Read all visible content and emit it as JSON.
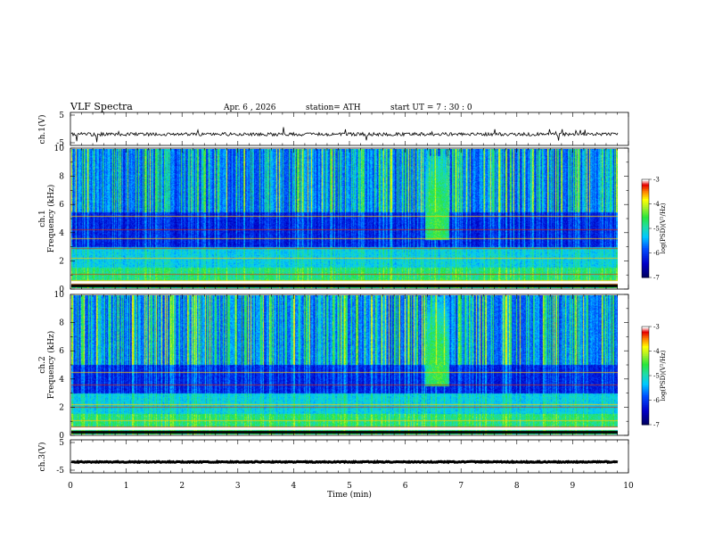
{
  "header": {
    "title": "VLF  Spectra",
    "date": "Apr. 6  , 2026",
    "station": "station= ATH",
    "start_ut": "start  UT  =   7  : 30 : 0"
  },
  "chart_data": [
    {
      "type": "line",
      "name": "ch1-waveform",
      "ylabel": "ch.1(V)",
      "ylim": [
        -5,
        5
      ],
      "yticks": [
        "5",
        "-5"
      ],
      "xlim": [
        0,
        10
      ],
      "baseline": -1.6,
      "noise_amplitude": 0.5,
      "spike_amplitude": 2.5
    },
    {
      "type": "heatmap",
      "name": "ch1-spectrogram",
      "ylabel": "ch.1\nFrequency  (kHz)",
      "ylabel_line1": "ch.1",
      "ylabel_line2": "Frequency  (kHz)",
      "ylim": [
        0,
        10
      ],
      "yticks": [
        "0",
        "2",
        "4",
        "6",
        "8",
        "10"
      ],
      "xlim": [
        0,
        9.8
      ],
      "colorbar": {
        "label": "log(PSD)(V²/Hz)",
        "range": [
          -7,
          -3
        ],
        "ticks": [
          "-3",
          "-4",
          "-5",
          "-6",
          "-7"
        ]
      },
      "bands_khz": [
        0.3,
        0.6,
        1.0,
        2.2,
        2.9,
        3.6,
        4.2,
        5.2
      ],
      "hiss_region_khz": [
        5.5,
        10
      ],
      "quiet_region_khz": [
        3.0,
        5.5
      ],
      "event": {
        "t_min": 6.55,
        "f_khz": [
          3.5,
          9.5
        ]
      }
    },
    {
      "type": "heatmap",
      "name": "ch2-spectrogram",
      "ylabel_line1": "ch.2",
      "ylabel_line2": "Frequency  (kHz)",
      "ylim": [
        0,
        10
      ],
      "yticks": [
        "0",
        "2",
        "4",
        "6",
        "8",
        "10"
      ],
      "xlim": [
        0,
        9.8
      ],
      "colorbar": {
        "label": "log(PSD)(V²/Hz)",
        "range": [
          -7,
          -3
        ],
        "ticks": [
          "-3",
          "-4",
          "-5",
          "-6",
          "-7"
        ]
      },
      "bands_khz": [
        0.6,
        1.0,
        2.0,
        2.2,
        3.6,
        4.5
      ],
      "hiss_region_khz": [
        5.0,
        10
      ],
      "event": {
        "t_min": 6.55,
        "f_khz": [
          3.5,
          10
        ]
      }
    },
    {
      "type": "line",
      "name": "ch3-waveform",
      "ylabel": "ch.3(V)",
      "ylim": [
        -5,
        5
      ],
      "yticks": [
        "5",
        "-5"
      ],
      "xlim": [
        0,
        10
      ],
      "baseline": -1.7,
      "noise_amplitude": 0.15
    }
  ],
  "xaxis": {
    "label": "Time  (min)",
    "ticks": [
      "0",
      "1",
      "2",
      "3",
      "4",
      "5",
      "6",
      "7",
      "8",
      "9",
      "10"
    ]
  }
}
